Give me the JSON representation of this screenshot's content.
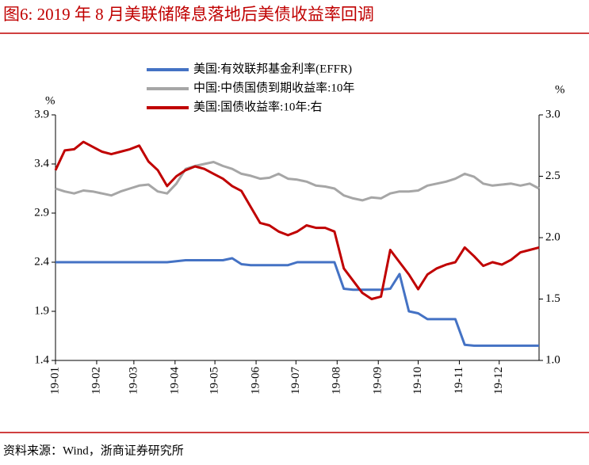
{
  "chart_data": {
    "type": "line",
    "title": "图6:  2019 年 8 月美联储降息落地后美债收益率回调",
    "source": "资料来源：Wind，浙商证券研究所",
    "ylabel": "%",
    "y2label": "%",
    "x": [
      1,
      8,
      15,
      22,
      29,
      36,
      43,
      50,
      57,
      64,
      71,
      78,
      85,
      92,
      99,
      106,
      113,
      120,
      127,
      134,
      141,
      148,
      155,
      162,
      169,
      176,
      183,
      190,
      197,
      204,
      211,
      218,
      225,
      232,
      239,
      246,
      253,
      260,
      267,
      274,
      281,
      288,
      295,
      302,
      309,
      316,
      323,
      330,
      337,
      344,
      351,
      358,
      365
    ],
    "xlim": [
      1,
      365
    ],
    "xticks": [
      {
        "value": 1,
        "label": "19-01"
      },
      {
        "value": 32,
        "label": "19-02"
      },
      {
        "value": 60,
        "label": "19-03"
      },
      {
        "value": 91,
        "label": "19-04"
      },
      {
        "value": 121,
        "label": "19-05"
      },
      {
        "value": 152,
        "label": "19-06"
      },
      {
        "value": 182,
        "label": "19-07"
      },
      {
        "value": 213,
        "label": "19-08"
      },
      {
        "value": 244,
        "label": "19-09"
      },
      {
        "value": 274,
        "label": "19-10"
      },
      {
        "value": 305,
        "label": "19-11"
      },
      {
        "value": 335,
        "label": "19-12"
      }
    ],
    "ylim": [
      1.4,
      3.9
    ],
    "yticks": [
      1.4,
      1.9,
      2.4,
      2.9,
      3.4,
      3.9
    ],
    "y2lim": [
      1.0,
      3.0
    ],
    "y2ticks": [
      {
        "value": 1,
        "label": "1.0"
      },
      {
        "value": 1.5,
        "label": "1.5"
      },
      {
        "value": 2,
        "label": "2.0"
      },
      {
        "value": 2.5,
        "label": "2.5"
      },
      {
        "value": 3,
        "label": "3.0"
      }
    ],
    "legend": "top",
    "series": [
      {
        "name": "美国:有效联邦基金利率(EFFR)",
        "color": "#4472c4",
        "axis": "y",
        "values": [
          2.4,
          2.4,
          2.4,
          2.4,
          2.4,
          2.4,
          2.4,
          2.4,
          2.4,
          2.4,
          2.4,
          2.4,
          2.4,
          2.41,
          2.42,
          2.42,
          2.42,
          2.42,
          2.42,
          2.44,
          2.38,
          2.37,
          2.37,
          2.37,
          2.37,
          2.37,
          2.4,
          2.4,
          2.4,
          2.4,
          2.4,
          2.13,
          2.12,
          2.12,
          2.12,
          2.12,
          2.13,
          2.28,
          1.9,
          1.88,
          1.82,
          1.82,
          1.82,
          1.82,
          1.56,
          1.55,
          1.55,
          1.55,
          1.55,
          1.55,
          1.55,
          1.55,
          1.55
        ]
      },
      {
        "name": "中国:中债国债到期收益率:10年",
        "color": "#a6a6a6",
        "axis": "y",
        "values": [
          3.15,
          3.12,
          3.1,
          3.13,
          3.12,
          3.1,
          3.08,
          3.12,
          3.15,
          3.18,
          3.19,
          3.12,
          3.1,
          3.2,
          3.35,
          3.38,
          3.4,
          3.42,
          3.38,
          3.35,
          3.3,
          3.28,
          3.25,
          3.26,
          3.3,
          3.25,
          3.24,
          3.22,
          3.18,
          3.17,
          3.15,
          3.08,
          3.05,
          3.03,
          3.06,
          3.05,
          3.1,
          3.12,
          3.12,
          3.13,
          3.18,
          3.2,
          3.22,
          3.25,
          3.3,
          3.27,
          3.2,
          3.18,
          3.19,
          3.2,
          3.18,
          3.2,
          3.15
        ]
      },
      {
        "name": "美国:国债收益率:10年:右",
        "color": "#c00000",
        "axis": "y2",
        "values": [
          2.55,
          2.71,
          2.72,
          2.78,
          2.74,
          2.7,
          2.68,
          2.7,
          2.72,
          2.75,
          2.62,
          2.55,
          2.42,
          2.5,
          2.55,
          2.58,
          2.56,
          2.52,
          2.48,
          2.42,
          2.38,
          2.25,
          2.12,
          2.1,
          2.05,
          2.02,
          2.05,
          2.1,
          2.08,
          2.08,
          2.05,
          1.75,
          1.65,
          1.55,
          1.5,
          1.52,
          1.9,
          1.8,
          1.7,
          1.58,
          1.7,
          1.75,
          1.78,
          1.8,
          1.92,
          1.85,
          1.77,
          1.8,
          1.78,
          1.82,
          1.88,
          1.9,
          1.92
        ]
      }
    ]
  }
}
